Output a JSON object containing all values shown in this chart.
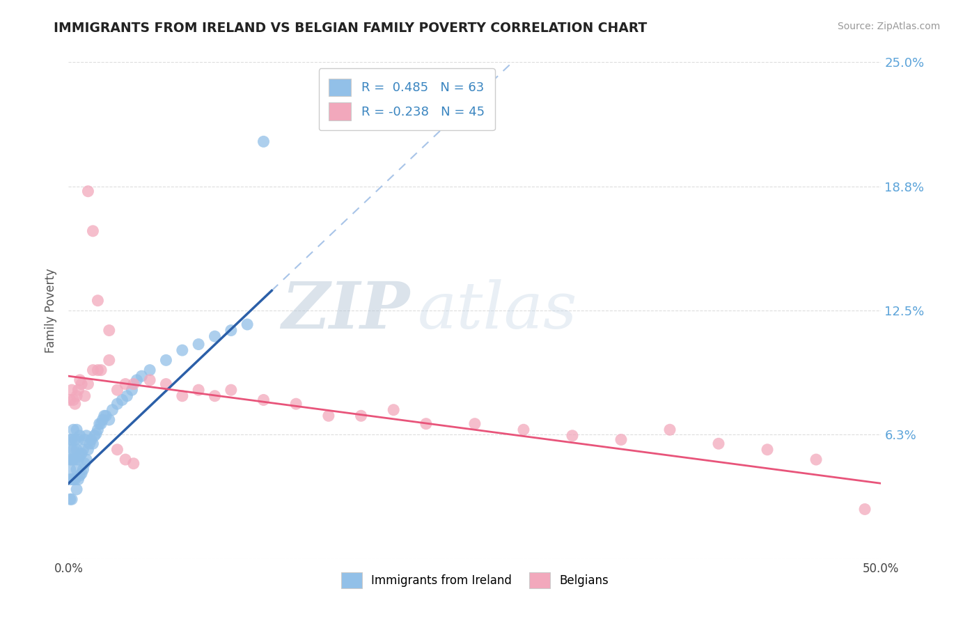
{
  "title": "IMMIGRANTS FROM IRELAND VS BELGIAN FAMILY POVERTY CORRELATION CHART",
  "source": "Source: ZipAtlas.com",
  "ylabel": "Family Poverty",
  "legend_label1": "Immigrants from Ireland",
  "legend_label2": "Belgians",
  "r1": 0.485,
  "n1": 63,
  "r2": -0.238,
  "n2": 45,
  "xmin": 0.0,
  "xmax": 0.5,
  "ymin": 0.0,
  "ymax": 0.25,
  "yticks": [
    0.0,
    0.0625,
    0.125,
    0.1875,
    0.25
  ],
  "ytick_labels": [
    "",
    "6.3%",
    "12.5%",
    "18.8%",
    "25.0%"
  ],
  "xticks": [
    0.0,
    0.1,
    0.2,
    0.3,
    0.4,
    0.5
  ],
  "xtick_labels": [
    "0.0%",
    "",
    "",
    "",
    "",
    "50.0%"
  ],
  "color1": "#92C0E8",
  "color2": "#F2A8BC",
  "trendline1_color": "#2B5FA8",
  "trendline2_color": "#E8547A",
  "trendline_dash_color": "#A8C4E8",
  "background_color": "#FFFFFF",
  "grid_color": "#DDDDDD",
  "scatter1_x": [
    0.001,
    0.001,
    0.001,
    0.001,
    0.001,
    0.002,
    0.002,
    0.002,
    0.002,
    0.002,
    0.003,
    0.003,
    0.003,
    0.003,
    0.004,
    0.004,
    0.004,
    0.005,
    0.005,
    0.005,
    0.005,
    0.006,
    0.006,
    0.006,
    0.007,
    0.007,
    0.007,
    0.008,
    0.008,
    0.009,
    0.009,
    0.01,
    0.01,
    0.011,
    0.011,
    0.012,
    0.013,
    0.014,
    0.015,
    0.016,
    0.017,
    0.018,
    0.019,
    0.02,
    0.021,
    0.022,
    0.023,
    0.025,
    0.027,
    0.03,
    0.033,
    0.036,
    0.039,
    0.042,
    0.045,
    0.05,
    0.06,
    0.07,
    0.08,
    0.09,
    0.1,
    0.11,
    0.12
  ],
  "scatter1_y": [
    0.03,
    0.04,
    0.045,
    0.05,
    0.06,
    0.03,
    0.04,
    0.05,
    0.055,
    0.06,
    0.04,
    0.05,
    0.055,
    0.065,
    0.04,
    0.05,
    0.06,
    0.035,
    0.045,
    0.055,
    0.065,
    0.04,
    0.05,
    0.06,
    0.042,
    0.052,
    0.062,
    0.043,
    0.053,
    0.045,
    0.055,
    0.048,
    0.06,
    0.05,
    0.062,
    0.055,
    0.058,
    0.06,
    0.058,
    0.062,
    0.063,
    0.065,
    0.068,
    0.068,
    0.07,
    0.072,
    0.072,
    0.07,
    0.075,
    0.078,
    0.08,
    0.082,
    0.085,
    0.09,
    0.092,
    0.095,
    0.1,
    0.105,
    0.108,
    0.112,
    0.115,
    0.118,
    0.21
  ],
  "scatter2_x": [
    0.001,
    0.002,
    0.003,
    0.004,
    0.005,
    0.006,
    0.007,
    0.008,
    0.01,
    0.012,
    0.015,
    0.018,
    0.02,
    0.025,
    0.03,
    0.035,
    0.04,
    0.05,
    0.06,
    0.07,
    0.08,
    0.09,
    0.1,
    0.12,
    0.14,
    0.16,
    0.18,
    0.2,
    0.22,
    0.25,
    0.28,
    0.31,
    0.34,
    0.37,
    0.4,
    0.43,
    0.46,
    0.49,
    0.025,
    0.03,
    0.035,
    0.04,
    0.012,
    0.015,
    0.018
  ],
  "scatter2_y": [
    0.08,
    0.085,
    0.08,
    0.078,
    0.082,
    0.085,
    0.09,
    0.088,
    0.082,
    0.088,
    0.095,
    0.095,
    0.095,
    0.1,
    0.085,
    0.088,
    0.088,
    0.09,
    0.088,
    0.082,
    0.085,
    0.082,
    0.085,
    0.08,
    0.078,
    0.072,
    0.072,
    0.075,
    0.068,
    0.068,
    0.065,
    0.062,
    0.06,
    0.065,
    0.058,
    0.055,
    0.05,
    0.025,
    0.115,
    0.055,
    0.05,
    0.048,
    0.185,
    0.165,
    0.13
  ],
  "trendline1_x_start": 0.0,
  "trendline1_x_end": 0.125,
  "trendline1_y_start": 0.038,
  "trendline1_y_end": 0.135,
  "trendline_dash_x_start": 0.125,
  "trendline_dash_x_end": 0.5,
  "trendline2_x_start": 0.0,
  "trendline2_x_end": 0.5,
  "trendline2_y_start": 0.092,
  "trendline2_y_end": 0.038
}
